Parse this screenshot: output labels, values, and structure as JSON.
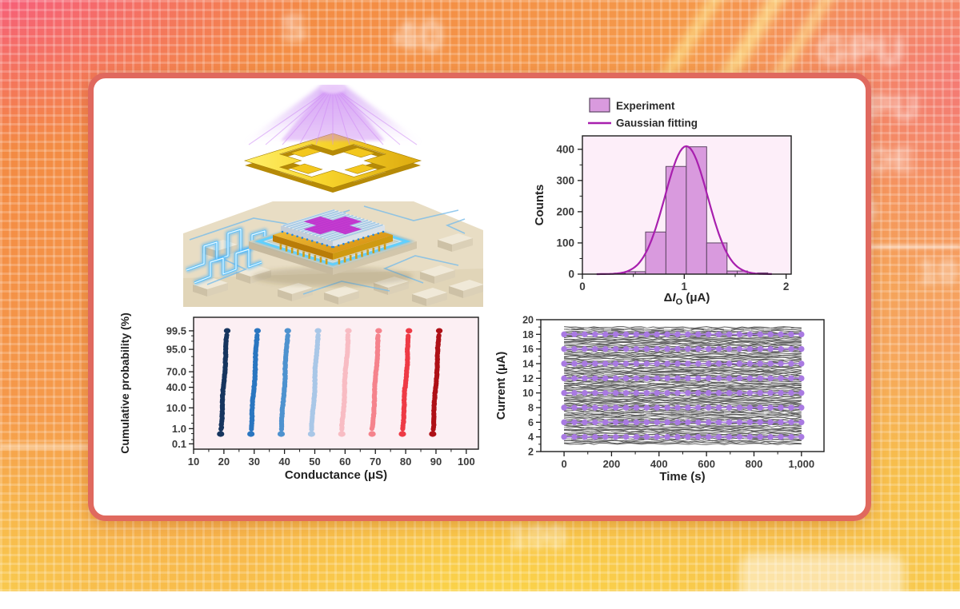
{
  "figure": {
    "panels": [
      "chip-illustration",
      "switching-current-histogram",
      "conductance-cumulative-probability",
      "current-retention-traces"
    ]
  },
  "card": {
    "background": "#ffffff",
    "border_color": "#e0695e"
  },
  "background": {
    "texts": [
      {
        "label": "40"
      },
      {
        "label": "GPU"
      },
      {
        "label": "GPU"
      },
      {
        "label": "h OE"
      },
      {
        "label": "9"
      },
      {
        "label": "10"
      },
      {
        "label": "100"
      },
      {
        "label": "S"
      }
    ]
  },
  "illustration": {
    "parts": [
      "light-beam",
      "gold-shadow-mask",
      "crossbar-chip",
      "magenta-cross-pattern",
      "gold-chip-carrier",
      "glowing-signal-waveform",
      "circuit-board"
    ]
  },
  "chart_data": [
    {
      "id": "switching-current-histogram",
      "type": "bar",
      "ylabel": "Counts",
      "xlabel": "ΔIO (μA)",
      "xlabel_rich": [
        {
          "t": "Δ"
        },
        {
          "t": "I",
          "italic": true
        },
        {
          "t": "O",
          "sub": true
        },
        {
          "t": " (μA)"
        }
      ],
      "xlim": [
        0,
        2.05
      ],
      "ylim": [
        0,
        443
      ],
      "xticks": [
        0,
        1,
        2
      ],
      "xtick_labels": [
        "0",
        "1",
        "2"
      ],
      "x_minor_ticks": [
        0.5,
        1.5
      ],
      "yticks": [
        0,
        100,
        200,
        300,
        400
      ],
      "ytick_labels": [
        "0",
        "100",
        "200",
        "300",
        "400"
      ],
      "y_minor_ticks": [
        50,
        150,
        250,
        350
      ],
      "bars": [
        {
          "x0": 0.32,
          "x1": 0.42,
          "count": 3
        },
        {
          "x0": 0.42,
          "x1": 0.52,
          "count": 8
        },
        {
          "x0": 0.52,
          "x1": 0.62,
          "count": 8
        },
        {
          "x0": 0.62,
          "x1": 0.82,
          "count": 135
        },
        {
          "x0": 0.82,
          "x1": 1.02,
          "count": 345
        },
        {
          "x0": 1.02,
          "x1": 1.22,
          "count": 408
        },
        {
          "x0": 1.22,
          "x1": 1.42,
          "count": 100
        },
        {
          "x0": 1.42,
          "x1": 1.52,
          "count": 10
        },
        {
          "x0": 1.52,
          "x1": 1.62,
          "count": 10
        },
        {
          "x0": 1.72,
          "x1": 1.82,
          "count": 4
        }
      ],
      "gaussian": {
        "mean": 1.02,
        "sigma": 0.21,
        "amplitude": 410
      },
      "legend": [
        {
          "label": "Experiment",
          "marker": "box"
        },
        {
          "label": "Gaussian fitting",
          "marker": "line"
        }
      ],
      "colors": {
        "bar_fill": "#d99ade",
        "bar_edge": "#5d4663",
        "curve": "#a81fae",
        "plot_bg": "#fdeef9"
      }
    },
    {
      "id": "conductance-cumulative-probability",
      "type": "scatter",
      "xlabel": "Conductance (μS)",
      "ylabel": "Cumulative probability (%)",
      "xlim": [
        10,
        104
      ],
      "y_scale": "probit",
      "z_range": [
        -3.35,
        3.25
      ],
      "xticks": [
        10,
        20,
        30,
        40,
        50,
        60,
        70,
        80,
        90,
        100
      ],
      "xtick_labels": [
        "10",
        "20",
        "30",
        "40",
        "50",
        "60",
        "70",
        "80",
        "90",
        "100"
      ],
      "yticks": [
        99.5,
        95,
        70,
        40,
        10,
        1,
        0.1
      ],
      "ytick_labels": [
        "99.5",
        "95.0",
        "70.0",
        "40.0",
        "10.0",
        "1.0",
        "0.1"
      ],
      "y_minor_ticks": [
        99,
        98,
        90,
        80,
        60,
        50,
        30,
        20,
        5,
        2,
        0.5,
        0.2
      ],
      "columns": [
        {
          "conductance": 20,
          "color": "#16355e"
        },
        {
          "conductance": 30,
          "color": "#2a76c0"
        },
        {
          "conductance": 40,
          "color": "#4e92cf"
        },
        {
          "conductance": 50,
          "color": "#a9c7e7"
        },
        {
          "conductance": 60,
          "color": "#f8bcc3"
        },
        {
          "conductance": 70,
          "color": "#f5838c"
        },
        {
          "conductance": 80,
          "color": "#ee3a45"
        },
        {
          "conductance": 90,
          "color": "#ae1016"
        }
      ],
      "points_per_column": 54,
      "slope": 0.42,
      "colors": {
        "plot_bg": "#fceff3"
      }
    },
    {
      "id": "current-retention-traces",
      "type": "line",
      "xlabel": "Time (s)",
      "ylabel": "Current (μA)",
      "xlim": [
        -98,
        1095
      ],
      "ylim": [
        2,
        20
      ],
      "xticks": [
        0,
        200,
        400,
        600,
        800,
        1000
      ],
      "xtick_labels": [
        "0",
        "200",
        "400",
        "600",
        "800",
        "1,000"
      ],
      "x_minor_ticks": [
        100,
        300,
        500,
        700,
        900
      ],
      "yticks": [
        2,
        4,
        6,
        8,
        10,
        12,
        14,
        16,
        18,
        20
      ],
      "ytick_labels": [
        "2",
        "4",
        "6",
        "8",
        "10",
        "12",
        "14",
        "16",
        "18",
        "20"
      ],
      "y_minor_ticks": [
        3,
        5,
        7,
        9,
        11,
        13,
        15,
        17,
        19
      ],
      "levels": [
        4,
        6,
        8,
        10,
        12,
        14,
        16,
        18
      ],
      "dots_per_level": 24,
      "time_span": [
        0,
        1000
      ],
      "colors": {
        "trace": "#545454",
        "streak": "#ffffff",
        "dot": "#a97ae2",
        "plot_bg": "#ffffff"
      }
    }
  ]
}
